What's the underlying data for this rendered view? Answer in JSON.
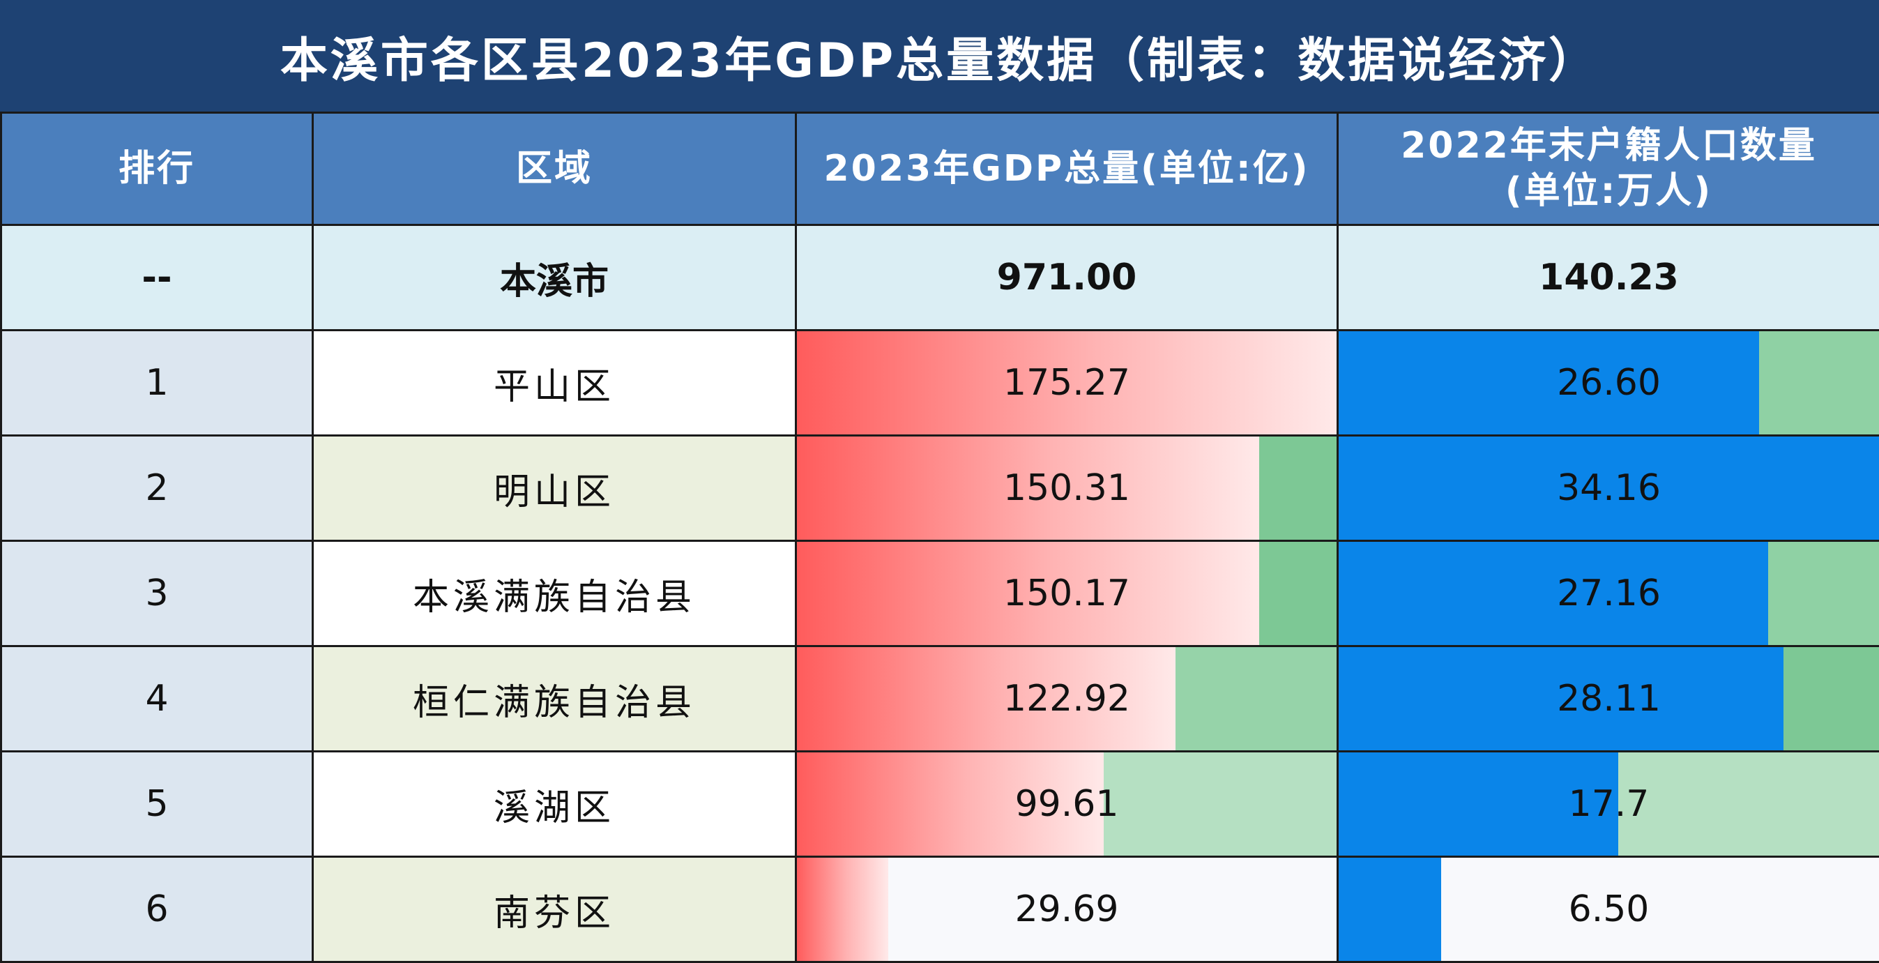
{
  "title": "本溪市各区县2023年GDP总量数据（制表：数据说经济）",
  "headers": {
    "rank": "排行",
    "area": "区域",
    "gdp": "2023年GDP总量(单位:亿)",
    "pop_line1": "2022年末户籍人口数量",
    "pop_line2": "(单位:万人)"
  },
  "total": {
    "rank": "--",
    "area": "本溪市",
    "gdp": "971.00",
    "pop": "140.23"
  },
  "rows": [
    {
      "rank": "1",
      "area": "平山区",
      "gdp": "175.27",
      "pop": "26.60",
      "gdp_fill": 1.0,
      "pop_fill": 0.778,
      "gdp_rest": "#fdebee",
      "pop_rest": "#8fd1a4"
    },
    {
      "rank": "2",
      "area": "明山区",
      "gdp": "150.31",
      "pop": "34.16",
      "gdp_fill": 0.857,
      "pop_fill": 1.0,
      "gdp_rest": "#7dc895",
      "pop_rest": "#0a85e9"
    },
    {
      "rank": "3",
      "area": "本溪满族自治县",
      "gdp": "150.17",
      "pop": "27.16",
      "gdp_fill": 0.857,
      "pop_fill": 0.795,
      "gdp_rest": "#7dc895",
      "pop_rest": "#8fd1a4"
    },
    {
      "rank": "4",
      "area": "桓仁满族自治县",
      "gdp": "122.92",
      "pop": "28.11",
      "gdp_fill": 0.701,
      "pop_fill": 0.823,
      "gdp_rest": "#96d3a9",
      "pop_rest": "#7dc895"
    },
    {
      "rank": "5",
      "area": "溪湖区",
      "gdp": "99.61",
      "pop": "17.7",
      "gdp_fill": 0.568,
      "pop_fill": 0.518,
      "gdp_rest": "#b5e0c2",
      "pop_rest": "#b5e0c2"
    },
    {
      "rank": "6",
      "area": "南芬区",
      "gdp": "29.69",
      "pop": "6.50",
      "gdp_fill": 0.169,
      "pop_fill": 0.19,
      "gdp_rest": "#f8f9fc",
      "pop_rest": "#f8f9fc"
    }
  ]
}
